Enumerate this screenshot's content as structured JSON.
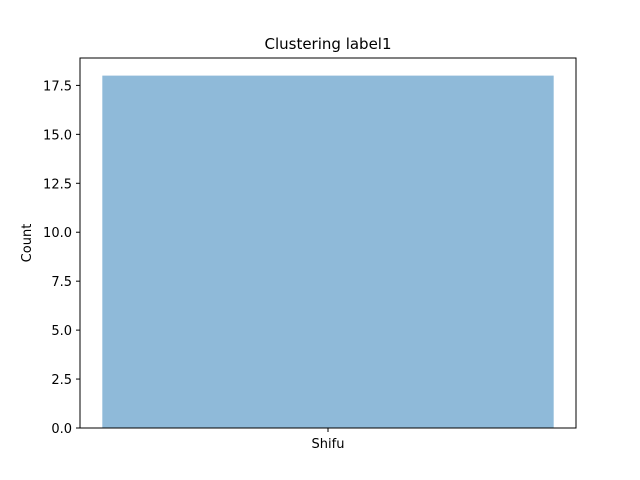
{
  "chart_data": {
    "type": "bar",
    "title": "Clustering label1",
    "xlabel": "",
    "ylabel": "Count",
    "categories": [
      "Shifu"
    ],
    "values": [
      18
    ],
    "ylim": [
      0,
      18.9
    ],
    "yticks": [
      0.0,
      2.5,
      5.0,
      7.5,
      10.0,
      12.5,
      15.0,
      17.5
    ],
    "ytick_labels": [
      "0.0",
      "2.5",
      "5.0",
      "7.5",
      "10.0",
      "12.5",
      "15.0",
      "17.5"
    ],
    "grid": false,
    "bar_color": "#8fbad9"
  }
}
